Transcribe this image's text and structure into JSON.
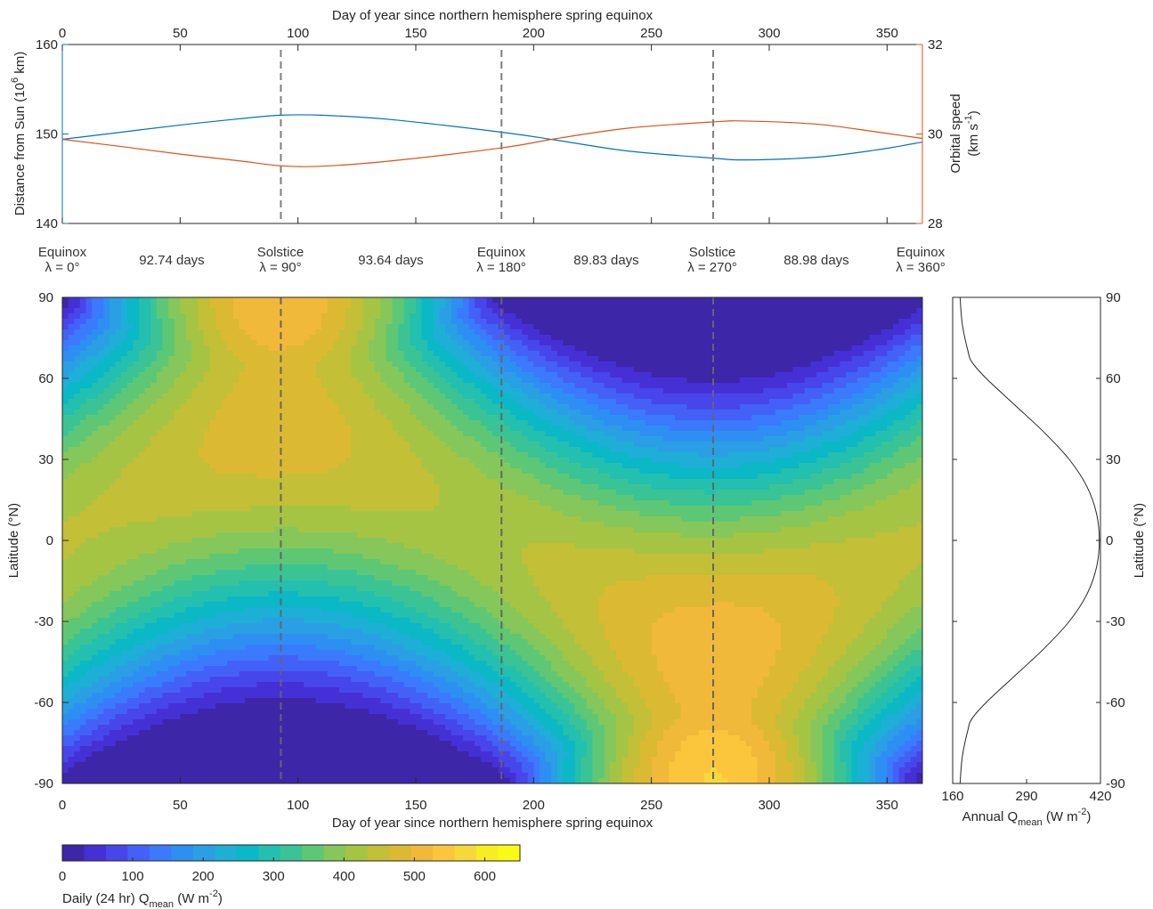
{
  "chart_data": [
    {
      "type": "line",
      "xlabel_top": "Day of year since northern hemisphere spring equinox",
      "xlim": [
        0,
        365
      ],
      "x_ticks": [
        0,
        50,
        100,
        150,
        200,
        250,
        300,
        350
      ],
      "ylabel_left": {
        "main": "Distance from Sun (10",
        "sup": "6",
        "tail": " km)"
      },
      "ylim_left": [
        140,
        160
      ],
      "yticks_left": [
        140,
        150,
        160
      ],
      "ylabel_right": {
        "line1": "Orbital speed",
        "line2_main": "(km s",
        "line2_sup": "-1",
        "line2_tail": ")"
      },
      "ylim_right": [
        28,
        32
      ],
      "yticks_right": [
        28,
        30,
        32
      ],
      "colors": {
        "left": "#0072BD",
        "right": "#D95319",
        "event_line": "#7f7f7f"
      },
      "series": [
        {
          "axis": "left",
          "x": [
            0,
            25,
            50,
            75,
            92.74,
            110,
            140,
            186.38,
            210,
            240,
            276.21,
            290,
            320,
            345,
            365
          ],
          "y": [
            149.4,
            150.2,
            151.0,
            151.7,
            152.1,
            152.1,
            151.6,
            150.2,
            149.3,
            148.1,
            147.3,
            147.1,
            147.4,
            148.2,
            149.1
          ]
        },
        {
          "axis": "right",
          "x": [
            0,
            25,
            50,
            75,
            92.74,
            110,
            140,
            186.38,
            210,
            240,
            276.21,
            290,
            320,
            345,
            365
          ],
          "y": [
            29.88,
            29.72,
            29.55,
            29.4,
            29.29,
            29.28,
            29.4,
            29.69,
            29.9,
            30.13,
            30.27,
            30.29,
            30.22,
            30.05,
            29.9
          ]
        }
      ],
      "event_days": [
        92.74,
        186.38,
        276.21
      ],
      "events": [
        {
          "name": "Equinox",
          "lambda": "λ = 0°"
        },
        {
          "name": "Solstice",
          "lambda": "λ = 90°"
        },
        {
          "name": "Equinox",
          "lambda": "λ = 180°"
        },
        {
          "name": "Solstice",
          "lambda": "λ = 270°"
        },
        {
          "name": "Equinox",
          "lambda": "λ = 360°"
        }
      ],
      "season_lengths": [
        "92.74 days",
        "93.64 days",
        "89.83 days",
        "88.98 days"
      ]
    },
    {
      "type": "heatmap",
      "xlabel": "Day of year since northern hemisphere spring equinox",
      "xlim": [
        0,
        365
      ],
      "x_ticks": [
        0,
        50,
        100,
        150,
        200,
        250,
        300,
        350
      ],
      "ylabel": "Latitude (°N)",
      "ylim": [
        -90,
        90
      ],
      "y_ticks": [
        -90,
        -60,
        -30,
        0,
        30,
        60,
        90
      ],
      "event_days": [
        92.74,
        186.38,
        276.21
      ],
      "colorbar": {
        "label_main": "Daily (24 hr) Q",
        "label_sub": "mean",
        "label_tail": " (W m",
        "label_sup": "-2",
        "label_end": ")",
        "range": [
          0,
          650
        ],
        "ticks": [
          0,
          100,
          200,
          300,
          400,
          500,
          600
        ],
        "colors": [
          "#3e26a8",
          "#4530d6",
          "#4746eb",
          "#4361f7",
          "#3b79fd",
          "#2d8ff2",
          "#2a9fe3",
          "#1eafd6",
          "#0ab8c6",
          "#23bfaf",
          "#3ac495",
          "#5ec776",
          "#85c75a",
          "#a6c444",
          "#c3bf36",
          "#dcb932",
          "#f0b939",
          "#fbc63b",
          "#f7d83a",
          "#f5ee21",
          "#f9fb15"
        ]
      }
    },
    {
      "type": "line",
      "xlabel_main": "Annual Q",
      "xlabel_sub": "mean",
      "xlabel_tail": " (W m",
      "xlabel_sup": "-2",
      "xlabel_end": ")",
      "xlim": [
        160,
        420
      ],
      "x_ticks": [
        160,
        290,
        420
      ],
      "ylabel": "Latitude (°N)",
      "ylim": [
        -90,
        90
      ],
      "y_ticks": [
        -90,
        -60,
        -30,
        0,
        30,
        60,
        90
      ],
      "series": [
        {
          "lat": [
            -90,
            -80,
            -70,
            -66,
            -60,
            -50,
            -40,
            -30,
            -20,
            -10,
            0,
            10,
            20,
            30,
            40,
            50,
            60,
            66,
            70,
            80,
            90
          ],
          "value": [
            173,
            177,
            187,
            194,
            219,
            270,
            321,
            365,
            396,
            413,
            418,
            413,
            396,
            365,
            321,
            270,
            219,
            194,
            187,
            177,
            173
          ]
        }
      ]
    }
  ]
}
